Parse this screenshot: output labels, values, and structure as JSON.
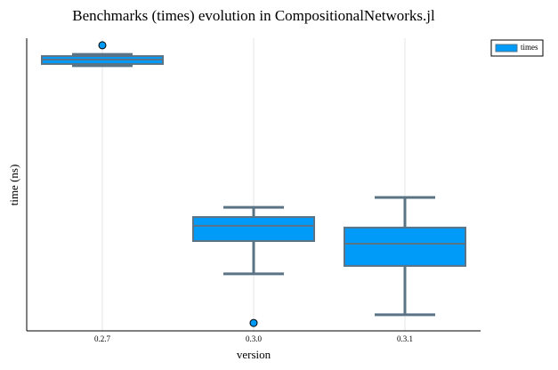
{
  "chart_data": {
    "type": "box",
    "title": "Benchmarks (times) evolution in CompositionalNetworks.jl",
    "xlabel": "version",
    "ylabel": "time (ns)",
    "categories": [
      "0.2.7",
      "0.3.0",
      "0.3.1"
    ],
    "ylim": [
      0,
      100
    ],
    "grid": true,
    "legend": "top-right",
    "series": [
      {
        "name": "times",
        "color": "#009af9",
        "min": [
          90.6,
          19.5,
          5.5
        ],
        "q1": [
          91.2,
          30.7,
          22.2
        ],
        "median": [
          92.7,
          35.9,
          29.8
        ],
        "q3": [
          93.9,
          38.9,
          35.3
        ],
        "max": [
          94.5,
          42.2,
          45.6
        ],
        "outliers": [
          [
            97.6
          ],
          [
            2.7
          ],
          []
        ]
      }
    ]
  }
}
